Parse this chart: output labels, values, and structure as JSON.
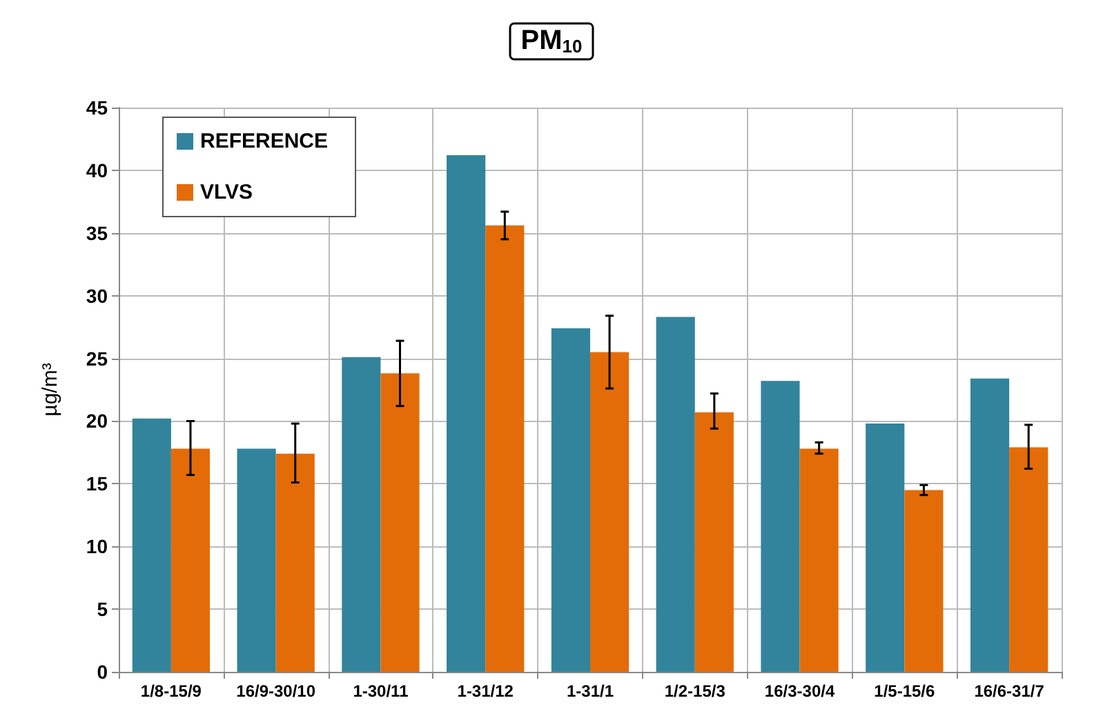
{
  "chart_data": {
    "type": "bar",
    "title": "PM$_{10}$",
    "ylabel": "µg/m³",
    "categories": [
      "1/8-15/9",
      "16/9-30/10",
      "1-30/11",
      "1-31/12",
      "1-31/1",
      "1/2-15/3",
      "16/3-30/4",
      "1/5-15/6",
      "16/6-31/7"
    ],
    "series": [
      {
        "name": "REFERENCE",
        "color": "#31849b",
        "values": [
          20.2,
          17.8,
          25.1,
          41.2,
          27.4,
          28.3,
          23.2,
          19.8,
          23.4
        ]
      },
      {
        "name": "VLVS",
        "color": "#e36c09",
        "values": [
          17.8,
          17.4,
          23.8,
          35.6,
          25.5,
          20.7,
          17.8,
          14.5,
          17.9
        ],
        "errors": [
          [
            15.7,
            20.0
          ],
          [
            15.1,
            19.8
          ],
          [
            21.2,
            26.4
          ],
          [
            34.5,
            36.7
          ],
          [
            22.6,
            28.4
          ],
          [
            19.4,
            22.2
          ],
          [
            17.4,
            18.3
          ],
          [
            14.1,
            14.9
          ],
          [
            16.2,
            19.7
          ]
        ]
      }
    ],
    "ylim": [
      0,
      45
    ],
    "yticks": [
      0,
      5,
      10,
      15,
      20,
      25,
      30,
      35,
      40,
      45
    ],
    "grid": true,
    "legend": "top left"
  }
}
